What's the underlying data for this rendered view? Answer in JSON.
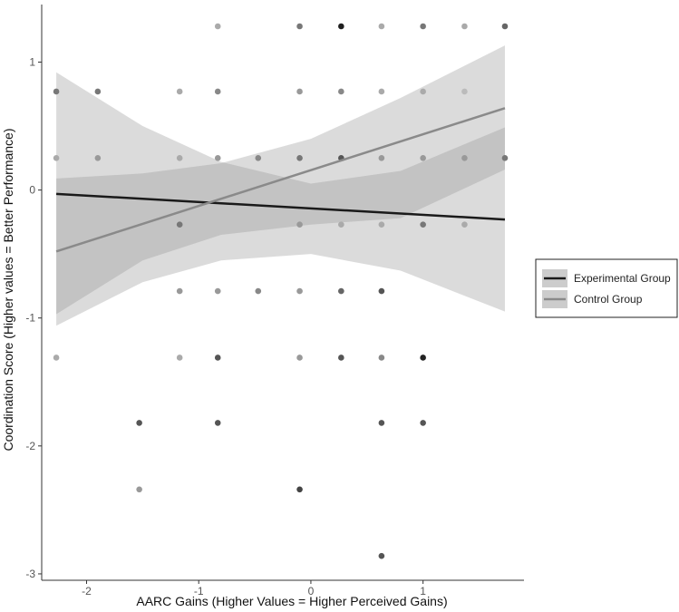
{
  "chart_data": {
    "type": "scatter",
    "title": "",
    "xlabel": "AARC Gains (Higher Values = Higher Perceived Gains)",
    "ylabel": "Coordination Score (Higher values = Better Performance)",
    "xlim": [
      -2.4,
      1.9
    ],
    "ylim": [
      -3.05,
      1.45
    ],
    "x_ticks": [
      -2,
      -1,
      0,
      1
    ],
    "y_ticks": [
      1,
      0,
      -1,
      -2,
      -3
    ],
    "grid": false,
    "legend_position": "right",
    "series": [
      {
        "name": "Experimental Group",
        "color": "#1a1a1a",
        "fit_x": [
          -2.27,
          1.73
        ],
        "fit_y": [
          -0.03,
          -0.23
        ],
        "band_lower": [
          [
            -2.27,
            -0.97
          ],
          [
            -1.5,
            -0.55
          ],
          [
            -0.8,
            -0.35
          ],
          [
            0.0,
            -0.27
          ],
          [
            0.8,
            -0.22
          ],
          [
            1.73,
            0.16
          ]
        ],
        "band_upper": [
          [
            -2.27,
            0.92
          ],
          [
            -1.5,
            0.5
          ],
          [
            -0.8,
            0.22
          ],
          [
            0.0,
            0.05
          ],
          [
            0.8,
            0.15
          ],
          [
            1.73,
            0.49
          ]
        ]
      },
      {
        "name": "Control Group",
        "color": "#8a8a8a",
        "fit_x": [
          -2.27,
          1.73
        ],
        "fit_y": [
          -0.48,
          0.64
        ],
        "band_lower": [
          [
            -2.27,
            -1.06
          ],
          [
            -1.5,
            -0.72
          ],
          [
            -0.8,
            -0.55
          ],
          [
            0.0,
            -0.5
          ],
          [
            0.8,
            -0.63
          ],
          [
            1.73,
            -0.95
          ]
        ],
        "band_upper": [
          [
            -2.27,
            0.09
          ],
          [
            -1.5,
            0.13
          ],
          [
            -0.8,
            0.21
          ],
          [
            0.0,
            0.4
          ],
          [
            0.8,
            0.72
          ],
          [
            1.73,
            1.13
          ]
        ]
      }
    ],
    "points": [
      {
        "x": 0.27,
        "y": 1.28,
        "shade": "#1f1f1f"
      },
      {
        "x": -0.83,
        "y": 1.28,
        "shade": "#aaaaaa"
      },
      {
        "x": -0.1,
        "y": 1.28,
        "shade": "#777777"
      },
      {
        "x": 0.63,
        "y": 1.28,
        "shade": "#aaaaaa"
      },
      {
        "x": 1.0,
        "y": 1.28,
        "shade": "#777777"
      },
      {
        "x": 1.37,
        "y": 1.28,
        "shade": "#aaaaaa"
      },
      {
        "x": 1.73,
        "y": 1.28,
        "shade": "#666666"
      },
      {
        "x": -2.27,
        "y": 0.77,
        "shade": "#777777"
      },
      {
        "x": -1.9,
        "y": 0.77,
        "shade": "#777777"
      },
      {
        "x": -1.17,
        "y": 0.77,
        "shade": "#aaaaaa"
      },
      {
        "x": -0.83,
        "y": 0.77,
        "shade": "#888888"
      },
      {
        "x": -0.1,
        "y": 0.77,
        "shade": "#999999"
      },
      {
        "x": 0.27,
        "y": 0.77,
        "shade": "#888888"
      },
      {
        "x": 0.63,
        "y": 0.77,
        "shade": "#aaaaaa"
      },
      {
        "x": 1.0,
        "y": 0.77,
        "shade": "#aaaaaa"
      },
      {
        "x": 1.37,
        "y": 0.77,
        "shade": "#bbbbbb"
      },
      {
        "x": -2.27,
        "y": 0.25,
        "shade": "#aaaaaa"
      },
      {
        "x": -1.9,
        "y": 0.25,
        "shade": "#999999"
      },
      {
        "x": -1.17,
        "y": 0.25,
        "shade": "#aaaaaa"
      },
      {
        "x": -0.83,
        "y": 0.25,
        "shade": "#999999"
      },
      {
        "x": -0.47,
        "y": 0.25,
        "shade": "#888888"
      },
      {
        "x": -0.1,
        "y": 0.25,
        "shade": "#777777"
      },
      {
        "x": 0.27,
        "y": 0.25,
        "shade": "#555555"
      },
      {
        "x": 0.63,
        "y": 0.25,
        "shade": "#999999"
      },
      {
        "x": 1.0,
        "y": 0.25,
        "shade": "#999999"
      },
      {
        "x": 1.37,
        "y": 0.25,
        "shade": "#999999"
      },
      {
        "x": 1.73,
        "y": 0.25,
        "shade": "#777777"
      },
      {
        "x": -1.17,
        "y": -0.27,
        "shade": "#777777"
      },
      {
        "x": -0.1,
        "y": -0.27,
        "shade": "#999999"
      },
      {
        "x": 0.27,
        "y": -0.27,
        "shade": "#aaaaaa"
      },
      {
        "x": 0.63,
        "y": -0.27,
        "shade": "#aaaaaa"
      },
      {
        "x": 1.0,
        "y": -0.27,
        "shade": "#777777"
      },
      {
        "x": 1.37,
        "y": -0.27,
        "shade": "#aaaaaa"
      },
      {
        "x": -1.17,
        "y": -0.79,
        "shade": "#999999"
      },
      {
        "x": -0.83,
        "y": -0.79,
        "shade": "#999999"
      },
      {
        "x": -0.47,
        "y": -0.79,
        "shade": "#888888"
      },
      {
        "x": -0.1,
        "y": -0.79,
        "shade": "#999999"
      },
      {
        "x": 0.27,
        "y": -0.79,
        "shade": "#666666"
      },
      {
        "x": 0.63,
        "y": -0.79,
        "shade": "#555555"
      },
      {
        "x": -2.27,
        "y": -1.31,
        "shade": "#aaaaaa"
      },
      {
        "x": -1.17,
        "y": -1.31,
        "shade": "#aaaaaa"
      },
      {
        "x": -0.83,
        "y": -1.31,
        "shade": "#555555"
      },
      {
        "x": -0.1,
        "y": -1.31,
        "shade": "#999999"
      },
      {
        "x": 0.27,
        "y": -1.31,
        "shade": "#555555"
      },
      {
        "x": 0.63,
        "y": -1.31,
        "shade": "#888888"
      },
      {
        "x": 1.0,
        "y": -1.31,
        "shade": "#222222"
      },
      {
        "x": -1.53,
        "y": -1.82,
        "shade": "#555555"
      },
      {
        "x": -0.83,
        "y": -1.82,
        "shade": "#555555"
      },
      {
        "x": 0.63,
        "y": -1.82,
        "shade": "#555555"
      },
      {
        "x": 1.0,
        "y": -1.82,
        "shade": "#555555"
      },
      {
        "x": -1.53,
        "y": -2.34,
        "shade": "#999999"
      },
      {
        "x": -0.1,
        "y": -2.34,
        "shade": "#444444"
      },
      {
        "x": 0.63,
        "y": -2.86,
        "shade": "#555555"
      }
    ]
  },
  "legend": {
    "items": [
      {
        "label": "Experimental Group",
        "color": "#1a1a1a"
      },
      {
        "label": "Control Group",
        "color": "#8a8a8a"
      }
    ]
  }
}
